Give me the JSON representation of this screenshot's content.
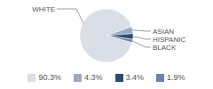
{
  "chart_data": {
    "type": "pie",
    "categories": [
      "WHITE",
      "ASIAN",
      "HISPANIC",
      "BLACK"
    ],
    "values": [
      90.3,
      4.3,
      3.4,
      1.9
    ],
    "value_labels": [
      "90.3%",
      "4.3%",
      "3.4%",
      "1.9%"
    ],
    "colors": [
      "#d9dee7",
      "#9cabc2",
      "#2e4a6e",
      "#6b85a8"
    ]
  }
}
